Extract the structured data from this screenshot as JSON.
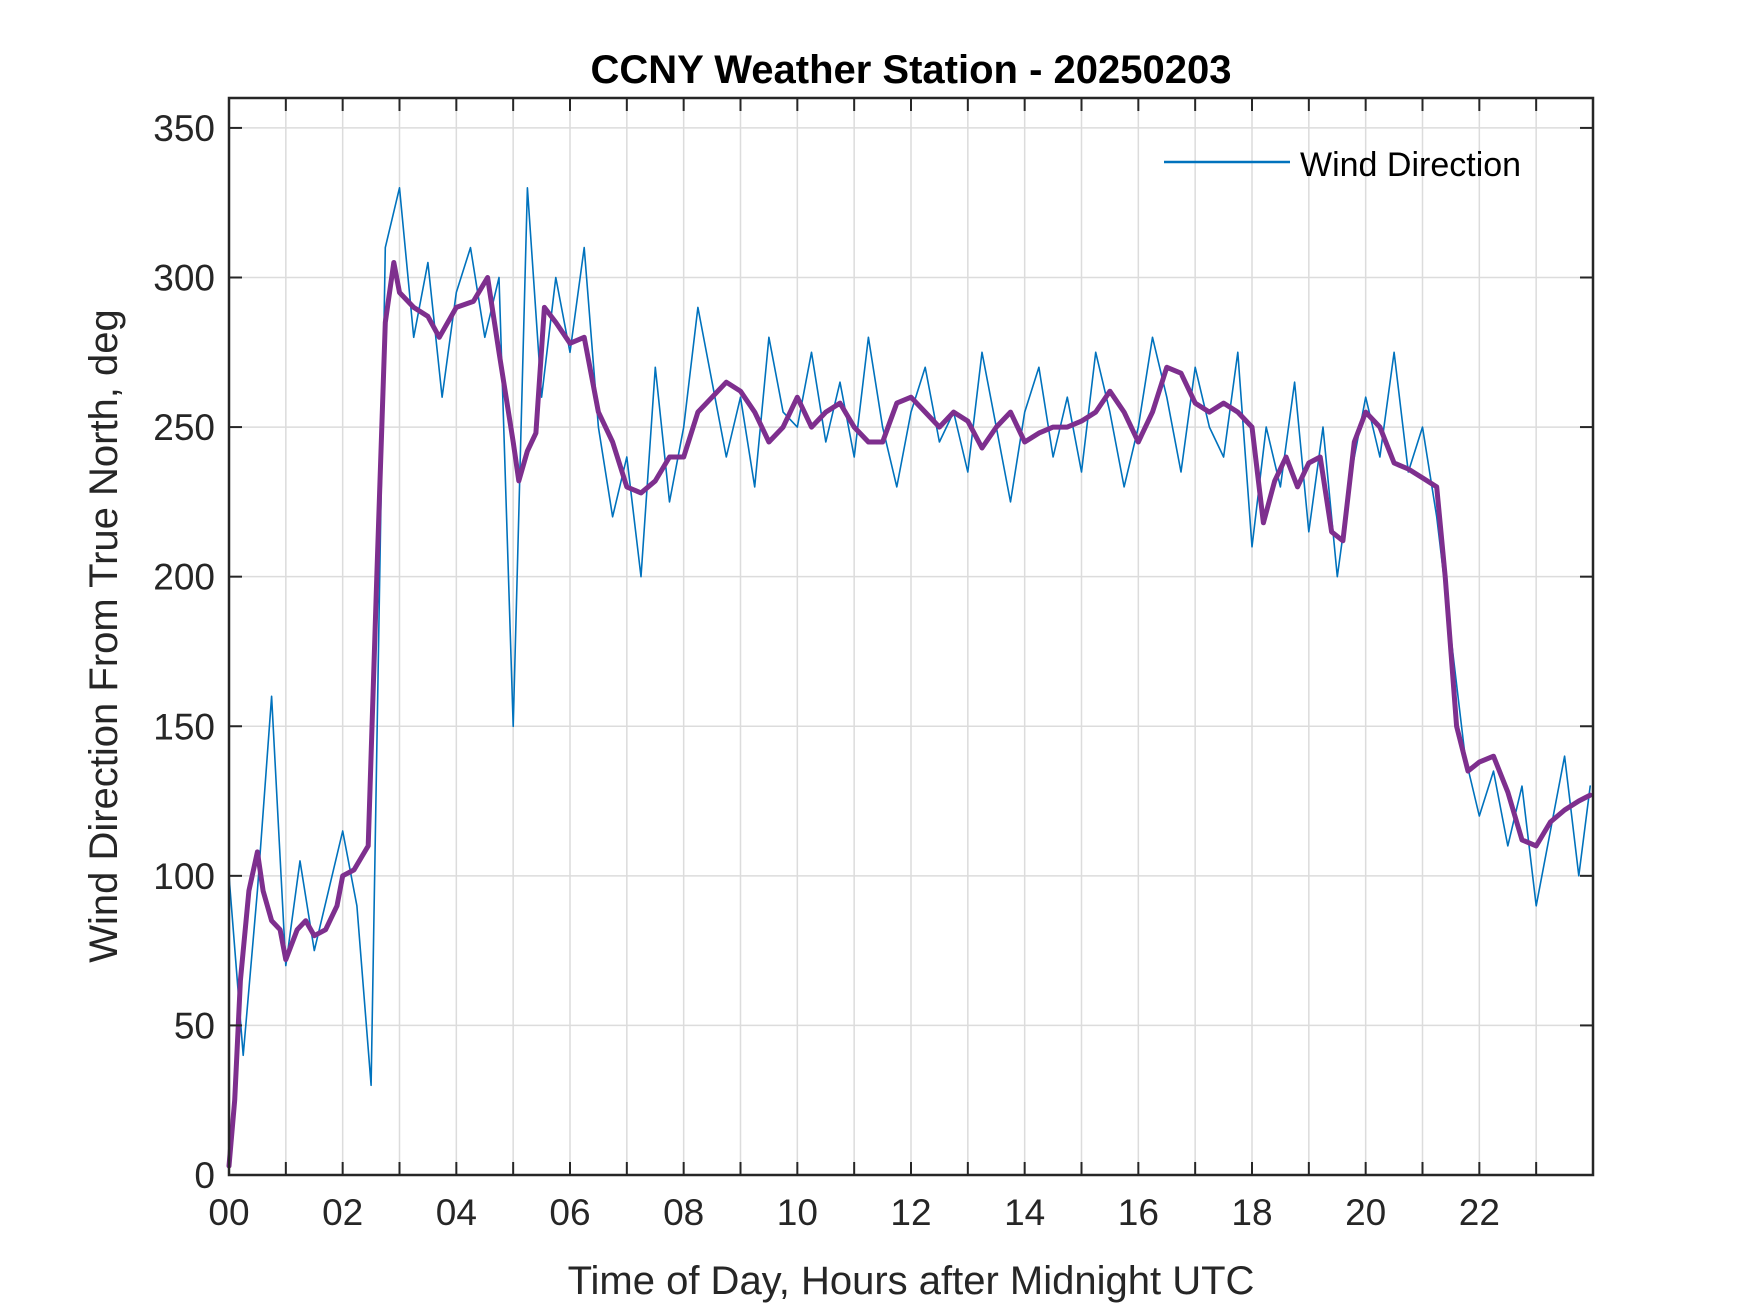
{
  "chart_data": {
    "type": "line",
    "title": "CCNY Weather Station - 20250203",
    "xlabel": "Time of Day, Hours after Midnight UTC",
    "ylabel": "Wind Direction From True North, deg",
    "xlim": [
      0,
      24
    ],
    "ylim": [
      0,
      360
    ],
    "x_ticks": [
      0,
      2,
      4,
      6,
      8,
      10,
      12,
      14,
      16,
      18,
      20,
      22
    ],
    "x_tick_labels": [
      "00",
      "02",
      "04",
      "06",
      "08",
      "10",
      "12",
      "14",
      "16",
      "18",
      "20",
      "22"
    ],
    "y_ticks": [
      0,
      50,
      100,
      150,
      200,
      250,
      300,
      350
    ],
    "y_tick_labels": [
      "0",
      "50",
      "100",
      "150",
      "200",
      "250",
      "300",
      "350"
    ],
    "grid": true,
    "legend": {
      "position": "top-right",
      "entries": [
        "Wind Direction"
      ]
    },
    "colors": {
      "raw": "#0072BD",
      "smooth": "#7E2F8E"
    },
    "series": [
      {
        "name": "Wind Direction",
        "color": "#0072BD",
        "x": [
          0.0,
          0.25,
          0.5,
          0.75,
          1.0,
          1.25,
          1.5,
          1.75,
          2.0,
          2.25,
          2.5,
          2.75,
          3.0,
          3.25,
          3.5,
          3.75,
          4.0,
          4.25,
          4.5,
          4.75,
          5.0,
          5.25,
          5.5,
          5.75,
          6.0,
          6.25,
          6.5,
          6.75,
          7.0,
          7.25,
          7.5,
          7.75,
          8.0,
          8.25,
          8.5,
          8.75,
          9.0,
          9.25,
          9.5,
          9.75,
          10.0,
          10.25,
          10.5,
          10.75,
          11.0,
          11.25,
          11.5,
          11.75,
          12.0,
          12.25,
          12.5,
          12.75,
          13.0,
          13.25,
          13.5,
          13.75,
          14.0,
          14.25,
          14.5,
          14.75,
          15.0,
          15.25,
          15.5,
          15.75,
          16.0,
          16.25,
          16.5,
          16.75,
          17.0,
          17.25,
          17.5,
          17.75,
          18.0,
          18.25,
          18.5,
          18.75,
          19.0,
          19.25,
          19.5,
          19.75,
          20.0,
          20.25,
          20.5,
          20.75,
          21.0,
          21.25,
          21.5,
          21.75,
          22.0,
          22.25,
          22.5,
          22.75,
          23.0,
          23.25,
          23.5,
          23.75,
          23.95
        ],
        "y": [
          100,
          40,
          95,
          160,
          70,
          105,
          75,
          95,
          115,
          90,
          30,
          310,
          330,
          280,
          305,
          260,
          295,
          310,
          280,
          300,
          150,
          330,
          260,
          300,
          275,
          310,
          250,
          220,
          240,
          200,
          270,
          225,
          250,
          290,
          265,
          240,
          260,
          230,
          280,
          255,
          250,
          275,
          245,
          265,
          240,
          280,
          250,
          230,
          255,
          270,
          245,
          255,
          235,
          275,
          250,
          225,
          255,
          270,
          240,
          260,
          235,
          275,
          255,
          230,
          250,
          280,
          260,
          235,
          270,
          250,
          240,
          275,
          210,
          250,
          230,
          265,
          215,
          250,
          200,
          235,
          260,
          240,
          275,
          235,
          250,
          220,
          180,
          140,
          120,
          135,
          110,
          130,
          90,
          115,
          140,
          100,
          130
        ]
      },
      {
        "name": "",
        "color": "#7E2F8E",
        "x": [
          0.0,
          0.1,
          0.2,
          0.35,
          0.5,
          0.6,
          0.75,
          0.9,
          1.0,
          1.2,
          1.35,
          1.5,
          1.7,
          1.9,
          2.0,
          2.2,
          2.45,
          2.6,
          2.75,
          2.9,
          3.0,
          3.25,
          3.5,
          3.7,
          4.0,
          4.3,
          4.55,
          4.75,
          5.0,
          5.1,
          5.25,
          5.4,
          5.55,
          5.75,
          6.0,
          6.25,
          6.5,
          6.75,
          7.0,
          7.25,
          7.5,
          7.75,
          8.0,
          8.25,
          8.5,
          8.75,
          9.0,
          9.25,
          9.5,
          9.75,
          10.0,
          10.25,
          10.5,
          10.75,
          11.0,
          11.25,
          11.5,
          11.75,
          12.0,
          12.25,
          12.5,
          12.75,
          13.0,
          13.25,
          13.5,
          13.75,
          14.0,
          14.25,
          14.5,
          14.75,
          15.0,
          15.25,
          15.5,
          15.75,
          16.0,
          16.25,
          16.5,
          16.75,
          17.0,
          17.25,
          17.5,
          17.75,
          18.0,
          18.2,
          18.4,
          18.6,
          18.8,
          19.0,
          19.2,
          19.4,
          19.6,
          19.8,
          20.0,
          20.25,
          20.5,
          20.75,
          21.0,
          21.25,
          21.4,
          21.6,
          21.8,
          22.0,
          22.25,
          22.5,
          22.75,
          23.0,
          23.25,
          23.5,
          23.75,
          23.95
        ],
        "y": [
          3,
          25,
          65,
          95,
          108,
          95,
          85,
          82,
          72,
          82,
          85,
          80,
          82,
          90,
          100,
          102,
          110,
          200,
          285,
          305,
          295,
          290,
          287,
          280,
          290,
          292,
          300,
          275,
          245,
          232,
          242,
          248,
          290,
          285,
          278,
          280,
          255,
          245,
          230,
          228,
          232,
          240,
          240,
          255,
          260,
          265,
          262,
          255,
          245,
          250,
          260,
          250,
          255,
          258,
          250,
          245,
          245,
          258,
          260,
          255,
          250,
          255,
          252,
          243,
          250,
          255,
          245,
          248,
          250,
          250,
          252,
          255,
          262,
          255,
          245,
          255,
          270,
          268,
          258,
          255,
          258,
          255,
          250,
          218,
          232,
          240,
          230,
          238,
          240,
          215,
          212,
          245,
          255,
          250,
          238,
          236,
          233,
          230,
          200,
          150,
          135,
          138,
          140,
          128,
          112,
          110,
          118,
          122,
          125,
          127
        ]
      }
    ]
  }
}
